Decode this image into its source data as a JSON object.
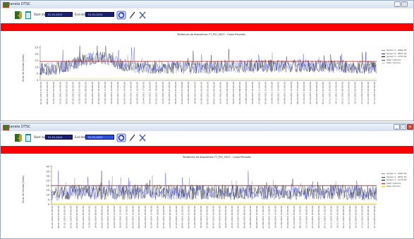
{
  "colors": {
    "alarm_bar": "#ff0000",
    "series_black": "#000000",
    "series_blue": "#1c2bd9",
    "series_gray": "#8a8a8a",
    "upper_limit": "#ff0000",
    "lower_limit": "#ffff00",
    "date_field": "#1a1f6e"
  },
  "icons": [
    "app-icon",
    "door-exit-icon",
    "clipboard-icon",
    "refresh-icon",
    "pen-icon",
    "tools-icon",
    "minimize-icon",
    "maximize-icon",
    "close-icon"
  ],
  "windows": [
    {
      "title": "Janela DTSC",
      "start_label": "Start date",
      "start_value": "01-01-2013",
      "end_label": "End date",
      "end_value": "01-01-2014",
      "chart_title": "Tendencia do dispositivo: FT_PIG_0023 - Caixa Previsão",
      "y_axis_label": "Sinal de tensão (Volts)",
      "legend": [
        "Sensor 1 - 0962 Hz",
        "Sensor 2 - 0871 Hz",
        "Sensor 3 - 0733 Hz",
        "Valor máximo",
        "Valor mínimo"
      ],
      "x_labels": [
        "01-01-2013 01:00:00",
        "08-01-2013 02:00:00",
        "15-01-2013 03:00:00",
        "22-01-2013 04:00:00",
        "29-01-2013 05:00:00",
        "05-02-2013 06:00:00",
        "12-02-2013 07:00:00",
        "19-02-2013 08:00:00",
        "26-02-2013 09:00:00",
        "05-03-2013 10:00:00",
        "12-03-2013 11:00:00",
        "19-03-2013 12:00:00",
        "26-03-2013 13:00:00",
        "02-04-2013 14:00:00",
        "09-04-2013 15:00:00",
        "16-04-2013 16:00:00",
        "23-04-2013 17:00:00",
        "30-04-2013 18:00:00",
        "07-05-2013 19:00:00",
        "14-05-2013 20:00:00",
        "21-05-2013 21:00:00",
        "28-05-2013 22:00:00",
        "04-06-2013 23:00:00",
        "11-06-2013 00:00:00",
        "18-06-2013 01:00:00",
        "25-06-2013 02:00:00",
        "02-07-2013 03:00:00",
        "09-07-2013 04:00:00",
        "16-07-2013 05:00:00",
        "23-07-2013 06:00:00",
        "30-07-2013 07:00:00",
        "06-08-2013 08:00:00",
        "13-08-2013 09:00:00",
        "20-08-2013 10:00:00",
        "27-08-2013 11:00:00",
        "03-09-2013 12:00:00",
        "10-09-2013 13:00:00",
        "17-09-2013 14:00:00",
        "24-09-2013 15:00:00",
        "01-10-2013 16:00:00",
        "08-10-2013 17:00:00",
        "15-10-2013 18:00:00",
        "22-10-2013 19:00:00",
        "29-10-2013 20:00:00",
        "05-11-2013 21:00:00",
        "12-11-2013 22:00:00",
        "19-11-2013 23:00:00",
        "26-11-2013 00:00:00",
        "03-12-2013 01:00:00",
        "10-12-2013 02:00:00",
        "17-12-2013 03:00:00",
        "24-12-2013 04:00:00",
        "31-12-2013 05:00:00"
      ],
      "y_ticks": [
        "0",
        "5",
        "10",
        "15",
        "20",
        "25"
      ],
      "chart_data": {
        "type": "line",
        "ylim": [
          0,
          27
        ],
        "yticks": [
          0,
          5,
          10,
          15,
          20,
          25
        ],
        "upper_limit": 14.5,
        "lower_limit": 1.5,
        "series_names": [
          "Sensor 1 - 0962 Hz",
          "Sensor 2 - 0871 Hz",
          "Sensor 3 - 0733 Hz"
        ],
        "envelope_mean": [
          9,
          8.5,
          9,
          10,
          11,
          13,
          15,
          16.5,
          17,
          17.5,
          16,
          14,
          12,
          11,
          10,
          10,
          10,
          10,
          10,
          10,
          10,
          10,
          10,
          10,
          10,
          10,
          10,
          11,
          11,
          11,
          11,
          11,
          11,
          11,
          11,
          11,
          11,
          11,
          11,
          11,
          11,
          11,
          11,
          11,
          11,
          10,
          10,
          10,
          10,
          10
        ],
        "spread": 5
      }
    },
    {
      "title": "Janela DTSC",
      "start_label": "Start date",
      "start_value": "01-01-2014",
      "end_label": "End date",
      "end_value": "01-01-2015",
      "chart_title": "Tendencia do dispositivo: FT_PIG_0023 - Caixa Previsão",
      "y_axis_label": "Sinal de tensão (Volts)",
      "legend": [
        "Sensor 1 - 0962 Hz",
        "Sensor 2 - 0871 Hz",
        "Sensor 3 - 0733 Hz",
        "Valor máximo",
        "Valor mínimo"
      ],
      "x_labels": [
        "01-01-2014 01:00:00",
        "08-01-2014 02:00:00",
        "15-01-2014 03:00:00",
        "22-01-2014 04:00:00",
        "29-01-2014 05:00:00",
        "05-02-2014 06:00:00",
        "12-02-2014 07:00:00",
        "19-02-2014 08:00:00",
        "26-02-2014 09:00:00",
        "05-03-2014 10:00:00",
        "12-03-2014 11:00:00",
        "19-03-2014 12:00:00",
        "26-03-2014 13:00:00",
        "02-04-2014 14:00:00",
        "09-04-2014 15:00:00",
        "16-04-2014 16:00:00",
        "23-04-2014 17:00:00",
        "30-04-2014 18:00:00",
        "07-05-2014 19:00:00",
        "14-05-2014 20:00:00",
        "21-05-2014 21:00:00",
        "28-05-2014 22:00:00",
        "04-06-2014 23:00:00",
        "11-06-2014 00:00:00",
        "18-06-2014 01:00:00",
        "25-06-2014 02:00:00",
        "02-07-2014 03:00:00",
        "09-07-2014 04:00:00",
        "16-07-2014 05:00:00",
        "23-07-2014 06:00:00",
        "30-07-2014 07:00:00",
        "06-08-2014 08:00:00",
        "13-08-2014 09:00:00",
        "20-08-2014 10:00:00",
        "27-08-2014 11:00:00",
        "03-09-2014 12:00:00",
        "10-09-2014 13:00:00",
        "17-09-2014 14:00:00",
        "24-09-2014 15:00:00",
        "01-10-2014 16:00:00",
        "08-10-2014 17:00:00",
        "15-10-2014 18:00:00",
        "22-10-2014 19:00:00",
        "29-10-2014 20:00:00",
        "05-11-2014 21:00:00",
        "12-11-2014 22:00:00",
        "19-11-2014 23:00:00",
        "26-11-2014 00:00:00",
        "03-12-2014 01:00:00",
        "10-12-2014 02:00:00",
        "17-12-2014 03:00:00",
        "24-12-2014 04:00:00",
        "31-12-2014 05:00:00"
      ],
      "y_ticks": [
        "0",
        "5",
        "10",
        "15",
        "20",
        "25",
        "30",
        "35",
        "40"
      ],
      "chart_data": {
        "type": "line",
        "ylim": [
          0,
          42
        ],
        "yticks": [
          0,
          5,
          10,
          15,
          20,
          25,
          30,
          35,
          40
        ],
        "upper_limit": 20,
        "lower_limit": 1.5,
        "series_names": [
          "Sensor 1 - 0962 Hz",
          "Sensor 2 - 0871 Hz",
          "Sensor 3 - 0733 Hz"
        ],
        "envelope_mean": [
          12,
          12,
          12,
          13,
          13,
          13,
          13,
          13,
          13,
          13,
          13,
          13,
          13,
          13,
          13,
          13,
          13,
          13,
          13,
          13,
          13,
          13,
          13,
          13,
          13,
          13,
          13,
          13,
          13,
          13,
          13,
          13,
          13,
          13,
          13,
          13,
          13,
          13,
          13,
          13,
          13,
          13,
          13,
          13,
          13,
          13,
          13,
          12,
          12,
          12
        ],
        "spread": 8
      }
    }
  ]
}
